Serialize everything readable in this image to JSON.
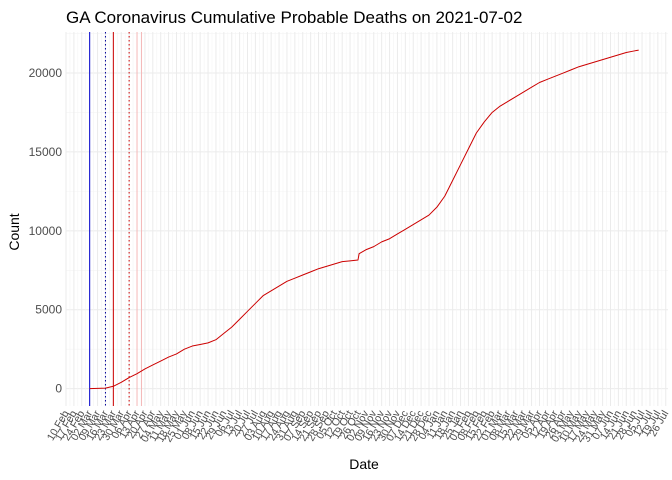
{
  "chart_data": {
    "type": "line",
    "title": "GA Coronavirus Cumulative Probable Deaths on 2021-07-02",
    "xlabel": "Date",
    "ylabel": "Count",
    "x_range": [
      "2020-02-10",
      "2021-07-28"
    ],
    "ylim": [
      -1100,
      22600
    ],
    "yticks": [
      0,
      5000,
      10000,
      15000,
      20000
    ],
    "grid": true,
    "line_color": "#cc0000",
    "xtick_labels": [
      "10 Feb",
      "17 Feb",
      "24 Feb",
      "02 Mar",
      "09 Mar",
      "16 Mar",
      "23 Mar",
      "30 Mar",
      "06 Apr",
      "13 Apr",
      "20 Apr",
      "27 Apr",
      "04 May",
      "11 May",
      "18 May",
      "25 May",
      "01 Jun",
      "08 Jun",
      "15 Jun",
      "22 Jun",
      "29 Jun",
      "06 Jul",
      "13 Jul",
      "20 Jul",
      "27 Jul",
      "03 Aug",
      "10 Aug",
      "17 Aug",
      "24 Aug",
      "31 Aug",
      "07 Sep",
      "14 Sep",
      "21 Sep",
      "28 Sep",
      "05 Oct",
      "12 Oct",
      "19 Oct",
      "26 Oct",
      "02 Nov",
      "09 Nov",
      "16 Nov",
      "23 Nov",
      "30 Nov",
      "07 Dec",
      "14 Dec",
      "21 Dec",
      "28 Dec",
      "04 Jan",
      "11 Jan",
      "18 Jan",
      "25 Jan",
      "01 Feb",
      "08 Feb",
      "15 Feb",
      "22 Feb",
      "01 Mar",
      "08 Mar",
      "15 Mar",
      "22 Mar",
      "29 Mar",
      "05 Apr",
      "12 Apr",
      "19 Apr",
      "26 Apr",
      "03 May",
      "10 May",
      "17 May",
      "24 May",
      "31 May",
      "07 Jun",
      "14 Jun",
      "21 Jun",
      "28 Jun",
      "05 Jul",
      "12 Jul",
      "19 Jul",
      "26 Jul"
    ],
    "vlines": [
      {
        "date": "2020-03-02",
        "color": "#0000cc",
        "style": "solid"
      },
      {
        "date": "2020-03-16",
        "color": "#000099",
        "style": "dotted"
      },
      {
        "date": "2020-03-23",
        "color": "#cc0000",
        "style": "solid"
      },
      {
        "date": "2020-04-06",
        "color": "#cc0000",
        "style": "dotted"
      },
      {
        "date": "2020-04-13",
        "color": "#f4b8b8",
        "style": "solid"
      },
      {
        "date": "2020-04-17",
        "color": "#f4b8b8",
        "style": "solid"
      }
    ],
    "series": [
      {
        "x": [
          "2020-03-02",
          "2020-03-16",
          "2020-03-23",
          "2020-03-30",
          "2020-04-06",
          "2020-04-13",
          "2020-04-20",
          "2020-04-27",
          "2020-05-04",
          "2020-05-11",
          "2020-05-18",
          "2020-05-25",
          "2020-06-01",
          "2020-06-08",
          "2020-06-15",
          "2020-06-22",
          "2020-06-29",
          "2020-07-06",
          "2020-07-13",
          "2020-07-20",
          "2020-07-27",
          "2020-08-03",
          "2020-08-10",
          "2020-08-17",
          "2020-08-24",
          "2020-08-31",
          "2020-09-07",
          "2020-09-14",
          "2020-09-21",
          "2020-09-28",
          "2020-10-05",
          "2020-10-12",
          "2020-10-19",
          "2020-10-26",
          "2020-10-27",
          "2020-11-02",
          "2020-11-09",
          "2020-11-16",
          "2020-11-23",
          "2020-11-30",
          "2020-12-07",
          "2020-12-14",
          "2020-12-21",
          "2020-12-28",
          "2021-01-04",
          "2021-01-11",
          "2021-01-18",
          "2021-01-25",
          "2021-02-01",
          "2021-02-08",
          "2021-02-15",
          "2021-02-22",
          "2021-03-01",
          "2021-03-08",
          "2021-03-15",
          "2021-03-22",
          "2021-03-29",
          "2021-04-05",
          "2021-04-12",
          "2021-04-19",
          "2021-04-26",
          "2021-05-03",
          "2021-05-10",
          "2021-05-17",
          "2021-05-24",
          "2021-05-31",
          "2021-06-07",
          "2021-06-14",
          "2021-06-21",
          "2021-06-28",
          "2021-07-02"
        ],
        "y": [
          0,
          30,
          150,
          400,
          700,
          950,
          1250,
          1500,
          1750,
          2000,
          2200,
          2500,
          2700,
          2800,
          2900,
          3100,
          3500,
          3900,
          4400,
          4900,
          5400,
          5900,
          6200,
          6500,
          6800,
          7000,
          7200,
          7400,
          7600,
          7750,
          7900,
          8050,
          8100,
          8150,
          8550,
          8800,
          9000,
          9300,
          9500,
          9800,
          10100,
          10400,
          10700,
          11000,
          11500,
          12200,
          13200,
          14200,
          15200,
          16200,
          16900,
          17500,
          17900,
          18200,
          18500,
          18800,
          19100,
          19400,
          19600,
          19800,
          20000,
          20200,
          20400,
          20550,
          20700,
          20850,
          21000,
          21150,
          21300,
          21400,
          21450
        ]
      }
    ]
  }
}
